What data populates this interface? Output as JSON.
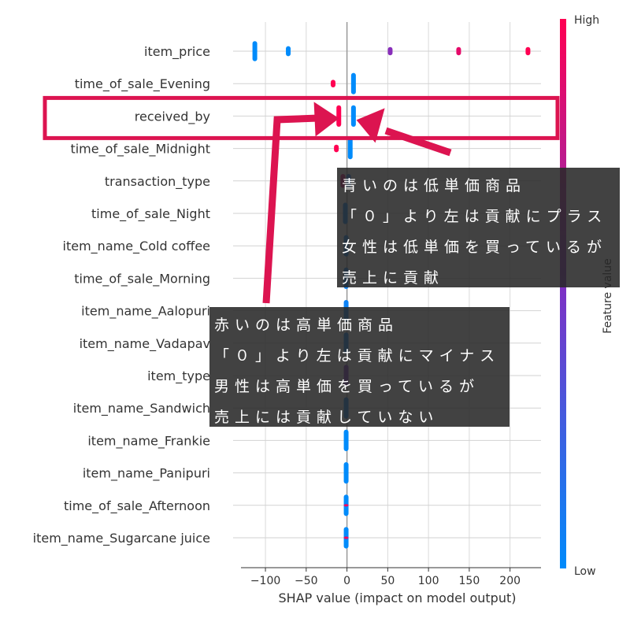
{
  "chart_data": {
    "type": "scatter",
    "subtype": "shap-beeswarm-summary",
    "xlabel": "SHAP value (impact on model output)",
    "xlim": [
      -130,
      238
    ],
    "x_ticks": [
      -100,
      -50,
      0,
      50,
      100,
      150,
      200
    ],
    "x_tick_labels": [
      "−100",
      "−50",
      "0",
      "50",
      "100",
      "150",
      "200"
    ],
    "colorbar": {
      "label": "Feature value",
      "high": "High",
      "low": "Low",
      "low_color": "#008bfb",
      "high_color": "#ff0052"
    },
    "features": [
      {
        "name": "item_price",
        "points": [
          {
            "x": -113,
            "v": 0.0,
            "spread": 3.2
          },
          {
            "x": -72,
            "v": 0.0,
            "spread": 1.6
          },
          {
            "x": 53,
            "v": 0.55,
            "spread": 1.3
          },
          {
            "x": 137,
            "v": 0.9,
            "spread": 1.3
          },
          {
            "x": 222,
            "v": 1.0,
            "spread": 1.3
          }
        ]
      },
      {
        "name": "time_of_sale_Evening",
        "points": [
          {
            "x": 8,
            "v": 0.0,
            "spread": 3.4
          },
          {
            "x": -17,
            "v": 1.0,
            "spread": 1.2
          }
        ]
      },
      {
        "name": "received_by",
        "points": [
          {
            "x": 8,
            "v": 0.0,
            "spread": 3.4
          },
          {
            "x": -10,
            "v": 1.0,
            "spread": 3.4
          }
        ]
      },
      {
        "name": "time_of_sale_Midnight",
        "points": [
          {
            "x": 4,
            "v": 0.0,
            "spread": 3.4
          },
          {
            "x": -13,
            "v": 1.0,
            "spread": 1.2
          }
        ]
      },
      {
        "name": "transaction_type",
        "points": [
          {
            "x": -5,
            "v": 0.85,
            "spread": 2.2
          },
          {
            "x": 2,
            "v": 0.1,
            "spread": 2.2
          }
        ]
      },
      {
        "name": "time_of_sale_Night",
        "points": [
          {
            "x": -2,
            "v": 0.05,
            "spread": 3.4
          }
        ]
      },
      {
        "name": "item_name_Cold coffee",
        "points": [
          {
            "x": -1,
            "v": 0.05,
            "spread": 3.4
          }
        ]
      },
      {
        "name": "time_of_sale_Morning",
        "points": [
          {
            "x": -1,
            "v": 0.05,
            "spread": 3.4
          }
        ]
      },
      {
        "name": "item_name_Aalopuri",
        "points": [
          {
            "x": -1,
            "v": 0.05,
            "spread": 3.4
          }
        ]
      },
      {
        "name": "item_name_Vadapav",
        "points": [
          {
            "x": -1,
            "v": 0.05,
            "spread": 3.4
          }
        ]
      },
      {
        "name": "item_type",
        "points": [
          {
            "x": -1,
            "v": 0.5,
            "spread": 3.4
          }
        ]
      },
      {
        "name": "item_name_Sandwich",
        "points": [
          {
            "x": -1,
            "v": 0.05,
            "spread": 3.4
          }
        ]
      },
      {
        "name": "item_name_Frankie",
        "points": [
          {
            "x": -1,
            "v": 0.0,
            "spread": 3.4
          }
        ]
      },
      {
        "name": "item_name_Panipuri",
        "points": [
          {
            "x": -1,
            "v": 0.0,
            "spread": 3.4
          }
        ]
      },
      {
        "name": "time_of_sale_Afternoon",
        "points": [
          {
            "x": -1,
            "v": 0.0,
            "spread": 3.4
          },
          {
            "x": -1,
            "v": 0.95,
            "spread": 0.4
          }
        ]
      },
      {
        "name": "item_name_Sugarcane juice",
        "points": [
          {
            "x": -1,
            "v": 0.0,
            "spread": 3.4
          },
          {
            "x": -1,
            "v": 0.95,
            "spread": 0.4
          }
        ]
      }
    ],
    "grid": true,
    "annotations": {
      "highlight_feature": "received_by",
      "highlight_color": "#dc1450",
      "note_blue": [
        "青いのは低単価商品",
        "「０」より左は貢献にプラス",
        "女性は低単価を買っているが",
        "売上に貢献"
      ],
      "note_red": [
        "赤いのは高単価商品",
        "「０」より左は貢献にマイナス",
        "男性は高単価を買っているが",
        "売上には貢献していない"
      ]
    }
  }
}
